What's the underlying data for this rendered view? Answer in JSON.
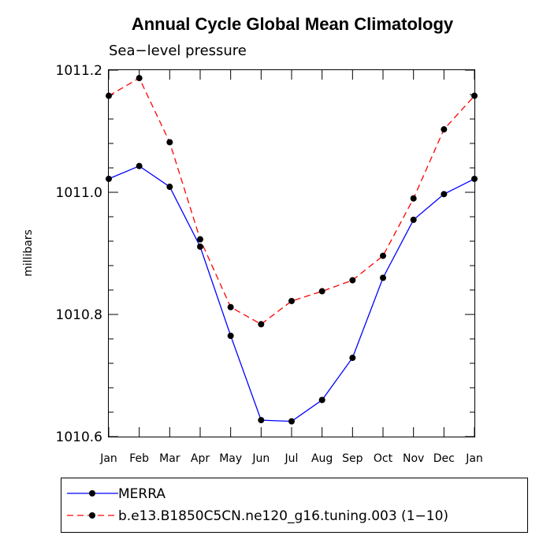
{
  "chart_data": {
    "type": "line",
    "title": "Annual Cycle Global Mean Climatology",
    "subtitle": "Sea−level pressure",
    "xlabel": "",
    "ylabel": "millibars",
    "categories": [
      "Jan",
      "Feb",
      "Mar",
      "Apr",
      "May",
      "Jun",
      "Jul",
      "Aug",
      "Sep",
      "Oct",
      "Nov",
      "Dec",
      "Jan"
    ],
    "ylim": [
      1010.6,
      1011.2
    ],
    "yticks": [
      {
        "value": 1010.6,
        "label": "1010.6"
      },
      {
        "value": 1010.8,
        "label": "1010.8"
      },
      {
        "value": 1011.0,
        "label": "1011.0"
      },
      {
        "value": 1011.2,
        "label": "1011.2"
      }
    ],
    "grid": false,
    "legend_position": "bottom",
    "series": [
      {
        "name": "MERRA",
        "color": "#0000ff",
        "line_style": "solid",
        "values": [
          1011.022,
          1011.043,
          1011.009,
          1010.911,
          1010.765,
          1010.627,
          1010.625,
          1010.66,
          1010.729,
          1010.86,
          1010.955,
          1010.997,
          1011.022
        ]
      },
      {
        "name": "b.e13.B1850C5CN.ne120_g16.tuning.003 (1−10)",
        "color": "#ff0000",
        "line_style": "dashed",
        "values": [
          1011.158,
          1011.187,
          1011.082,
          1010.923,
          1010.812,
          1010.784,
          1010.822,
          1010.838,
          1010.856,
          1010.896,
          1010.99,
          1011.103,
          1011.158
        ]
      }
    ]
  }
}
